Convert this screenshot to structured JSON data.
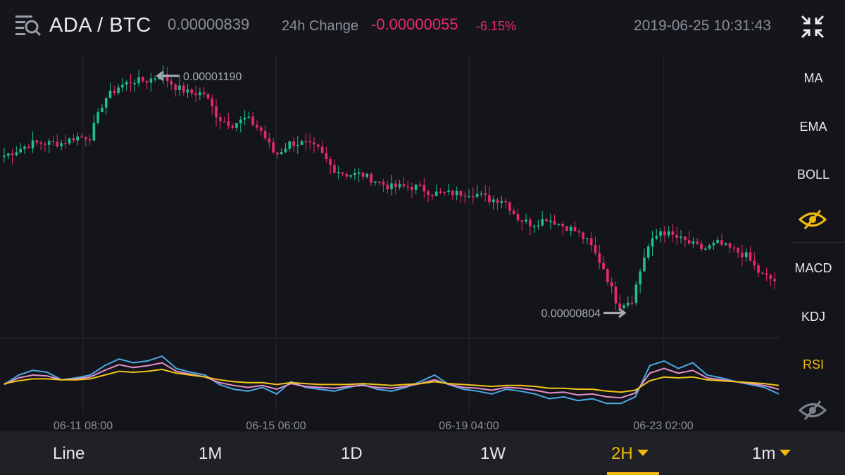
{
  "header": {
    "pair": "ADA / BTC",
    "last_price": "0.00000839",
    "change_label": "24h Change",
    "change_value": "-0.00000055",
    "change_percent": "-6.15%",
    "timestamp": "2019-06-25 10:31:43",
    "menu_icon": "search-list-icon",
    "collapse_icon": "collapse-arrows-icon"
  },
  "colors": {
    "up": "#1fbf8f",
    "down": "#e8286f",
    "accent": "#f0b90b",
    "rsi_fast": "#4aa9e6",
    "rsi_mid": "#e58fcf",
    "rsi_slow": "#f0c419"
  },
  "indicators": {
    "main": [
      {
        "label": "MA",
        "active": false
      },
      {
        "label": "EMA",
        "active": false
      },
      {
        "label": "BOLL",
        "active": false
      }
    ],
    "main_visibility_icon": "eye-hidden-icon",
    "sub": [
      {
        "label": "MACD",
        "active": false
      },
      {
        "label": "KDJ",
        "active": false
      },
      {
        "label": "RSI",
        "active": true
      }
    ],
    "sub_visibility_icon": "eye-hidden-icon"
  },
  "tabs": [
    {
      "label": "Line",
      "active": false,
      "dropdown": false
    },
    {
      "label": "1M",
      "active": false,
      "dropdown": false
    },
    {
      "label": "1D",
      "active": false,
      "dropdown": false
    },
    {
      "label": "1W",
      "active": false,
      "dropdown": false
    },
    {
      "label": "2H",
      "active": true,
      "dropdown": true
    },
    {
      "label": "1m",
      "active": false,
      "dropdown": true
    }
  ],
  "chart_data": {
    "type": "candlestick",
    "x_tick_labels": [
      "06-11 08:00",
      "06-15 06:00",
      "06-19 04:00",
      "06-23 02:00"
    ],
    "y_range": [
      7.8e-06,
      1.21e-05
    ],
    "high_marker": {
      "label": "0.00001190",
      "value": 1.19e-05
    },
    "low_marker": {
      "label": "0.00000804",
      "value": 8.04e-06
    },
    "close_path": [
      1.06e-05,
      1.07e-05,
      1.08e-05,
      1.08e-05,
      1.08e-05,
      1.09e-05,
      1.09e-05,
      1.15e-05,
      1.17e-05,
      1.18e-05,
      1.18e-05,
      1.19e-05,
      1.17e-05,
      1.16e-05,
      1.16e-05,
      1.12e-05,
      1.11e-05,
      1.12e-05,
      1.1e-05,
      1.06e-05,
      1.08e-05,
      1.08e-05,
      1.07e-05,
      1.04e-05,
      1.03e-05,
      1.03e-05,
      1.02e-05,
      1.01e-05,
      1.01e-05,
      1.01e-05,
      1e-05,
      1e-05,
      1e-05,
      1e-05,
      9.9e-06,
      9.9e-06,
      9.6e-06,
      9.5e-06,
      9.6e-06,
      9.5e-06,
      9.4e-06,
      9.2e-06,
      8.8e-06,
      8.2e-06,
      8.3e-06,
      9.1e-06,
      9.4e-06,
      9.3e-06,
      9.2e-06,
      9.1e-06,
      9.2e-06,
      9.1e-06,
      9e-06,
      8.7e-06,
      8.6e-06
    ],
    "rsi": {
      "y_range": [
        20,
        90
      ],
      "series": [
        {
          "values": [
            45,
            55,
            60,
            58,
            50,
            52,
            55,
            65,
            72,
            68,
            70,
            75,
            62,
            58,
            55,
            45,
            40,
            38,
            42,
            35,
            48,
            42,
            40,
            38,
            42,
            45,
            40,
            38,
            42,
            48,
            55,
            45,
            40,
            38,
            35,
            40,
            38,
            35,
            30,
            32,
            28,
            30,
            25,
            25,
            32,
            65,
            70,
            62,
            68,
            55,
            52,
            48,
            45,
            42,
            35
          ]
        },
        {
          "values": [
            45,
            52,
            55,
            54,
            50,
            51,
            53,
            60,
            66,
            63,
            65,
            68,
            59,
            56,
            53,
            47,
            44,
            42,
            44,
            40,
            46,
            43,
            42,
            41,
            43,
            44,
            42,
            41,
            43,
            46,
            50,
            45,
            42,
            41,
            39,
            42,
            41,
            39,
            36,
            37,
            34,
            35,
            32,
            31,
            36,
            57,
            62,
            57,
            60,
            52,
            50,
            48,
            46,
            44,
            40
          ]
        },
        {
          "values": [
            46,
            49,
            51,
            51,
            50,
            50,
            51,
            55,
            59,
            58,
            59,
            61,
            57,
            55,
            53,
            50,
            48,
            47,
            47,
            45,
            47,
            46,
            45,
            45,
            45,
            46,
            45,
            44,
            45,
            46,
            48,
            46,
            45,
            44,
            43,
            44,
            44,
            43,
            41,
            41,
            40,
            40,
            38,
            37,
            39,
            49,
            53,
            52,
            53,
            50,
            49,
            48,
            47,
            46,
            44
          ]
        }
      ]
    }
  }
}
